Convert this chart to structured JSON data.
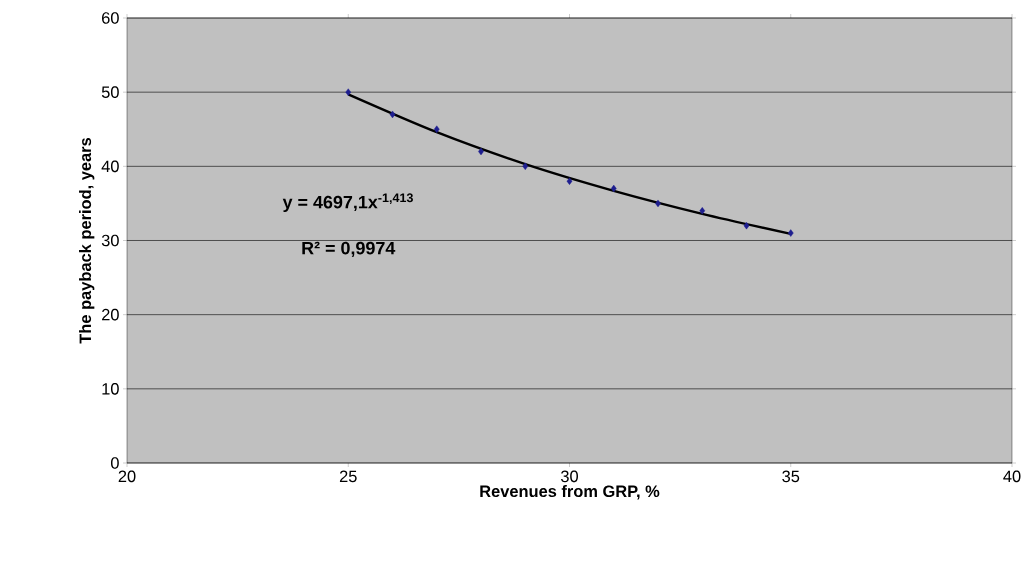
{
  "chart_data": {
    "type": "scatter",
    "xlabel": "Revenues from GRP, %",
    "ylabel": "The payback period, years",
    "xlim": [
      20,
      40
    ],
    "xticks": [
      20,
      25,
      30,
      35,
      40
    ],
    "ylim": [
      0,
      60
    ],
    "yticks": [
      0,
      10,
      20,
      30,
      40,
      50,
      60
    ],
    "grid": "y",
    "annotations": [
      "y = 4697,1x$^{-1,413}$",
      "R² = 0,9974"
    ],
    "series": [
      {
        "marker": "diamond",
        "color": "#1f1f8f",
        "x": [
          25,
          26,
          27,
          28,
          29,
          30,
          31,
          32,
          33,
          34,
          35
        ],
        "values": [
          50,
          47,
          45,
          42,
          40,
          38,
          37,
          35,
          34,
          32,
          31
        ]
      },
      {
        "type": "line",
        "marker": "none",
        "color": "#000000",
        "x": [
          25,
          27,
          29,
          31,
          33,
          35
        ],
        "values": [
          49.7,
          44.6,
          40.3,
          36.7,
          33.6,
          30.9
        ]
      }
    ]
  }
}
